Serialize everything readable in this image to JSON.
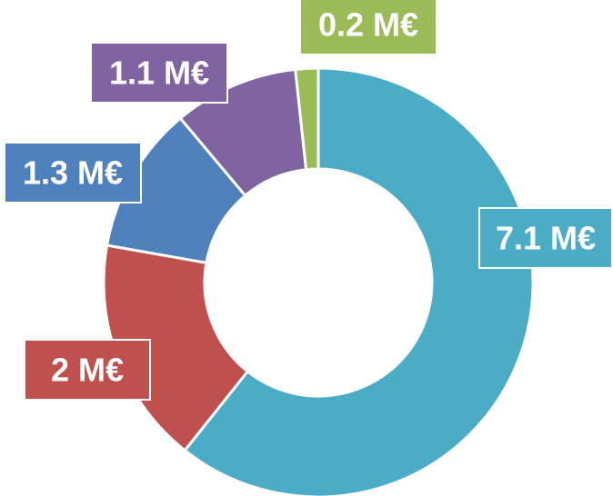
{
  "chart_data": {
    "type": "donut",
    "categories": [
      null,
      null,
      null,
      null,
      null
    ],
    "values": [
      7.1,
      2,
      1.3,
      1.1,
      0.2
    ],
    "value_labels": [
      "7.1 M€",
      "2 M€",
      "1.3 M€",
      "1.1 M€",
      "0.2 M€"
    ],
    "colors": [
      "#4bacc6",
      "#c0504d",
      "#4f81bd",
      "#8064a2",
      "#9bbb59"
    ]
  }
}
